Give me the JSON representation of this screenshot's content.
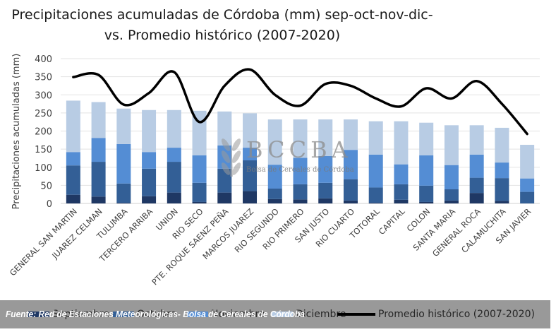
{
  "chart_data": {
    "type": "bar",
    "stacked": true,
    "title_lines": [
      "Precipitaciones acumuladas de Córdoba (mm) sep-oct-nov-dic-",
      "vs. Promedio histórico (2007-2020)"
    ],
    "xlabel": "",
    "ylabel": "Precipitaciones acumuladas (mm)",
    "ylim": [
      0,
      400
    ],
    "yticks": [
      0,
      50,
      100,
      150,
      200,
      250,
      300,
      350,
      400
    ],
    "grid": true,
    "legend_position": "bottom",
    "categories": [
      "GENERAL SAN MARTIN",
      "JUAREZ CELMAN",
      "TULUMBA",
      "TERCERO ARRIBA",
      "UNION",
      "RIO SECO",
      "PTE. ROQUE SAENZ PEÑA",
      "MARCOS JUAREZ",
      "RIO SEGUNDO",
      "RIO PRIMERO",
      "SAN JUSTO",
      "RIO CUARTO",
      "TOTORAL",
      "CAPITAL",
      "COLON",
      "SANTA MARIA",
      "GENERAL ROCA",
      "CALAMUCHITA",
      "SAN JAVIER"
    ],
    "series": [
      {
        "name": "Septiembre",
        "color": "#1f3864",
        "values": [
          24,
          19,
          2,
          20,
          30,
          4,
          30,
          34,
          12,
          11,
          14,
          8,
          2,
          10,
          4,
          8,
          29,
          7,
          0
        ]
      },
      {
        "name": "Octubre",
        "color": "#335f96",
        "values": [
          81,
          96,
          53,
          76,
          85,
          53,
          66,
          85,
          29,
          42,
          43,
          59,
          42,
          43,
          45,
          31,
          42,
          63,
          32
        ]
      },
      {
        "name": "Noviembre",
        "color": "#548dd4",
        "values": [
          37,
          66,
          109,
          46,
          39,
          76,
          64,
          35,
          66,
          73,
          74,
          81,
          91,
          55,
          84,
          67,
          64,
          43,
          37
        ]
      },
      {
        "name": "Diciembre",
        "color": "#b8cce4",
        "values": [
          142,
          99,
          98,
          116,
          104,
          123,
          94,
          95,
          125,
          106,
          101,
          84,
          92,
          119,
          90,
          110,
          81,
          96,
          93
        ]
      }
    ],
    "line_series": {
      "name": "Promedio histórico (2007-2020)",
      "color": "#000000",
      "values": [
        349,
        355,
        273,
        305,
        363,
        225,
        325,
        370,
        300,
        270,
        330,
        325,
        290,
        268,
        318,
        290,
        338,
        275,
        192
      ]
    }
  },
  "watermark": {
    "logo_text": "BCCBA",
    "subtitle": "Bolsa de Cereales de Córdoba"
  },
  "footer": {
    "source": "Fuente: Red de Estaciones Meteorológicas- Bolsa de Cereales de Córdoba"
  },
  "legend": {
    "items": [
      "Septiembre",
      "Octubre",
      "Noviembre",
      "Diciembre"
    ],
    "line_label": "Promedio histórico (2007-2020)"
  }
}
